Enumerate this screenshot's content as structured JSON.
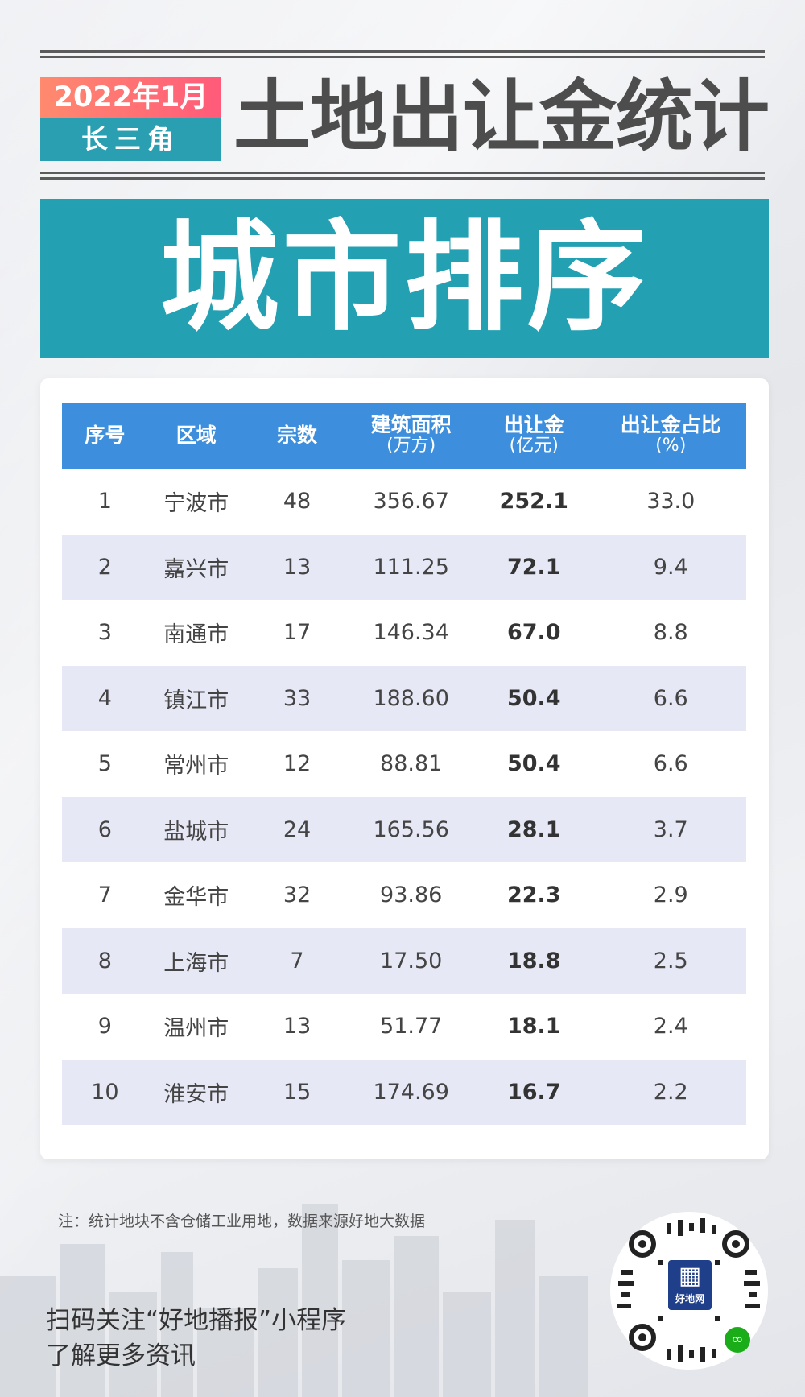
{
  "header": {
    "badge_date": "2022年1月",
    "badge_region": "长三角",
    "title": "土地出让金统计",
    "banner": "城市排序"
  },
  "table": {
    "columns": [
      {
        "label": "序号",
        "sub": ""
      },
      {
        "label": "区域",
        "sub": ""
      },
      {
        "label": "宗数",
        "sub": ""
      },
      {
        "label": "建筑面积",
        "sub": "(万方)"
      },
      {
        "label": "出让金",
        "sub": "(亿元)"
      },
      {
        "label": "出让金占比",
        "sub": "(%)"
      }
    ],
    "rows": [
      {
        "rank": "1",
        "city": "宁波市",
        "count": "48",
        "area": "356.67",
        "fee": "252.1",
        "share": "33.0"
      },
      {
        "rank": "2",
        "city": "嘉兴市",
        "count": "13",
        "area": "111.25",
        "fee": "72.1",
        "share": "9.4"
      },
      {
        "rank": "3",
        "city": "南通市",
        "count": "17",
        "area": "146.34",
        "fee": "67.0",
        "share": "8.8"
      },
      {
        "rank": "4",
        "city": "镇江市",
        "count": "33",
        "area": "188.60",
        "fee": "50.4",
        "share": "6.6"
      },
      {
        "rank": "5",
        "city": "常州市",
        "count": "12",
        "area": "88.81",
        "fee": "50.4",
        "share": "6.6"
      },
      {
        "rank": "6",
        "city": "盐城市",
        "count": "24",
        "area": "165.56",
        "fee": "28.1",
        "share": "3.7"
      },
      {
        "rank": "7",
        "city": "金华市",
        "count": "32",
        "area": "93.86",
        "fee": "22.3",
        "share": "2.9"
      },
      {
        "rank": "8",
        "city": "上海市",
        "count": "7",
        "area": "17.50",
        "fee": "18.8",
        "share": "2.5"
      },
      {
        "rank": "9",
        "city": "温州市",
        "count": "13",
        "area": "51.77",
        "fee": "18.1",
        "share": "2.4"
      },
      {
        "rank": "10",
        "city": "淮安市",
        "count": "15",
        "area": "174.69",
        "fee": "16.7",
        "share": "2.2"
      }
    ]
  },
  "footer": {
    "note": "注：统计地块不含仓储工业用地，数据来源好地大数据",
    "cta_line1": "扫码关注“好地播报”小程序",
    "cta_line2": "了解更多资讯",
    "qr_logo_text": "好地网"
  },
  "colors": {
    "banner": "#23a0b2",
    "table_header": "#3d8fdd",
    "row_alt": "#e6e8f5",
    "badge_top": "#ff6b75",
    "badge_bottom": "#2b9fb2"
  }
}
